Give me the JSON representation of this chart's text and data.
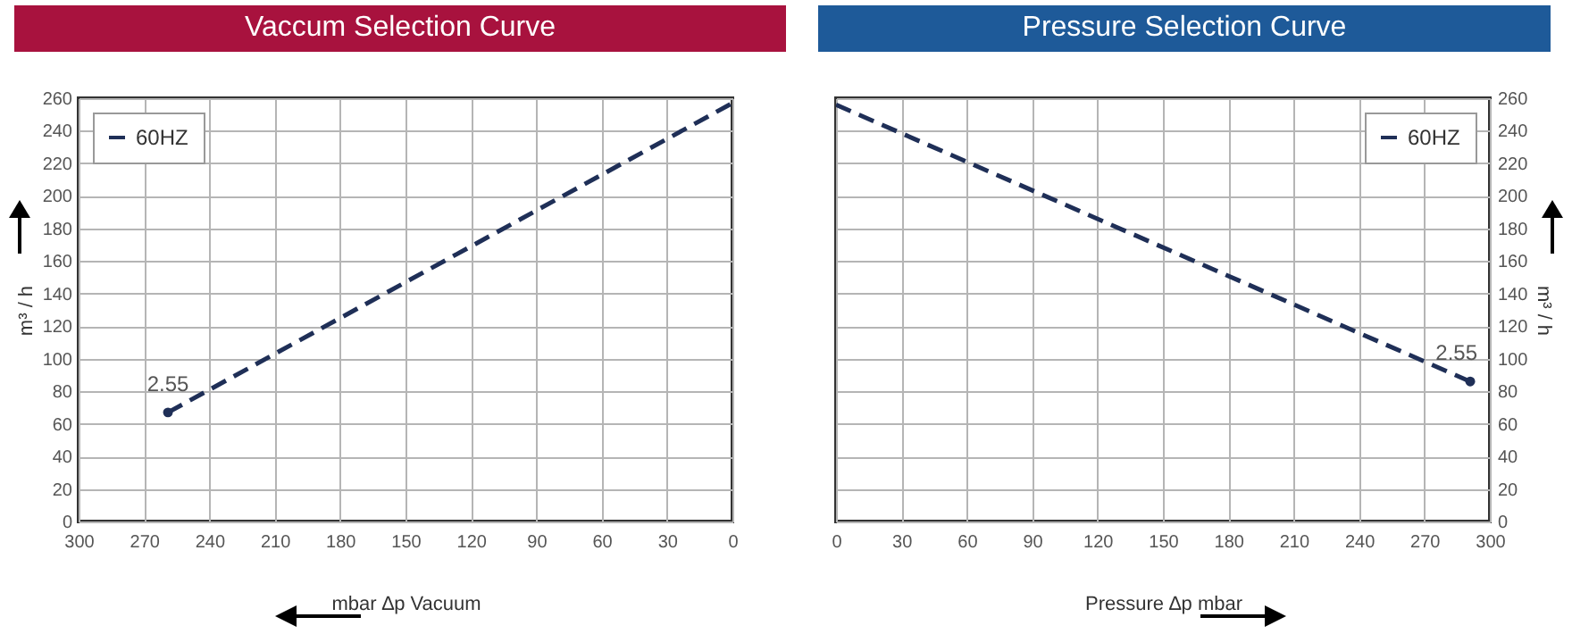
{
  "chart_data": [
    {
      "type": "line",
      "title": "Vaccum Selection Curve",
      "xlabel": "mbar ∆p Vacuum",
      "ylabel": "m³ / h",
      "xlim": [
        300,
        0
      ],
      "xticks": [
        300,
        270,
        240,
        210,
        180,
        150,
        120,
        90,
        60,
        30,
        0
      ],
      "ylim": [
        0,
        260
      ],
      "yticks": [
        0,
        20,
        40,
        60,
        80,
        100,
        120,
        140,
        160,
        180,
        200,
        220,
        240,
        260
      ],
      "grid": true,
      "legend": "top left",
      "line_style": "dashed",
      "series": [
        {
          "name": "60HZ",
          "color": "#1f2f57",
          "x": [
            259,
            0
          ],
          "values": [
            67,
            257
          ]
        },
        {
          "type": "scatter",
          "color": "#1f2f57",
          "x": [
            259
          ],
          "values": [
            67
          ]
        }
      ],
      "annotations": [
        {
          "text": "2.55",
          "x": 259,
          "y": 67
        }
      ]
    },
    {
      "type": "line",
      "title": "Pressure Selection Curve",
      "xlabel": "Pressure ∆p mbar",
      "y2label": "m³ / h",
      "xlim": [
        0,
        300
      ],
      "xticks": [
        0,
        30,
        60,
        90,
        120,
        150,
        180,
        210,
        240,
        270,
        300
      ],
      "y2lim": [
        0,
        260
      ],
      "y2ticks": [
        0,
        20,
        40,
        60,
        80,
        100,
        120,
        140,
        160,
        180,
        200,
        220,
        240,
        260
      ],
      "grid": true,
      "legend": "top right",
      "line_style": "dashed",
      "series": [
        {
          "name": "60HZ",
          "color": "#1f2f57",
          "axis": "y2",
          "x": [
            0,
            291
          ],
          "values": [
            256,
            86
          ]
        },
        {
          "type": "scatter",
          "color": "#1f2f57",
          "axis": "y2",
          "x": [
            291
          ],
          "values": [
            86
          ]
        }
      ],
      "annotations": [
        "2.55"
      ]
    }
  ]
}
